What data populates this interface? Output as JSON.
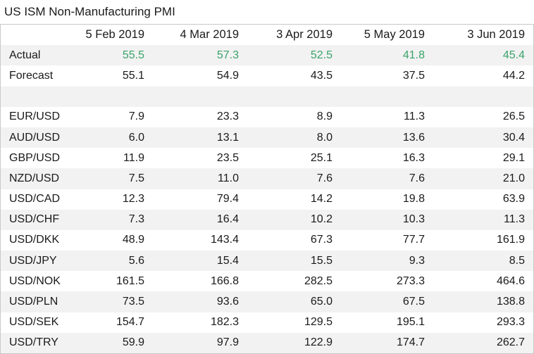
{
  "title": "US ISM Non-Manufacturing PMI",
  "columns": [
    "5 Feb 2019",
    "4 Mar 2019",
    "3 Apr 2019",
    "5 May 2019",
    "3 Jun 2019"
  ],
  "colors": {
    "actual_value": "#3aa36a",
    "row_shade": "#f2f2f2",
    "border": "#c8c8c8"
  },
  "rows": [
    {
      "label": "Actual",
      "values": [
        "55.5",
        "57.3",
        "52.5",
        "41.8",
        "45.4"
      ]
    },
    {
      "label": "Forecast",
      "values": [
        "55.1",
        "54.9",
        "43.5",
        "37.5",
        "44.2"
      ]
    },
    {
      "label": "",
      "values": [
        "",
        "",
        "",
        "",
        ""
      ]
    },
    {
      "label": "EUR/USD",
      "values": [
        "7.9",
        "23.3",
        "8.9",
        "11.3",
        "26.5"
      ]
    },
    {
      "label": "AUD/USD",
      "values": [
        "6.0",
        "13.1",
        "8.0",
        "13.6",
        "30.4"
      ]
    },
    {
      "label": "GBP/USD",
      "values": [
        "11.9",
        "23.5",
        "25.1",
        "16.3",
        "29.1"
      ]
    },
    {
      "label": "NZD/USD",
      "values": [
        "7.5",
        "11.0",
        "7.6",
        "7.6",
        "21.0"
      ]
    },
    {
      "label": "USD/CAD",
      "values": [
        "12.3",
        "79.4",
        "14.2",
        "19.8",
        "63.9"
      ]
    },
    {
      "label": "USD/CHF",
      "values": [
        "7.3",
        "16.4",
        "10.2",
        "10.3",
        "11.3"
      ]
    },
    {
      "label": "USD/DKK",
      "values": [
        "48.9",
        "143.4",
        "67.3",
        "77.7",
        "161.9"
      ]
    },
    {
      "label": "USD/JPY",
      "values": [
        "5.6",
        "15.4",
        "15.5",
        "9.3",
        "8.5"
      ]
    },
    {
      "label": "USD/NOK",
      "values": [
        "161.5",
        "166.8",
        "282.5",
        "273.3",
        "464.6"
      ]
    },
    {
      "label": "USD/PLN",
      "values": [
        "73.5",
        "93.6",
        "65.0",
        "67.5",
        "138.8"
      ]
    },
    {
      "label": "USD/SEK",
      "values": [
        "154.7",
        "182.3",
        "129.5",
        "195.1",
        "293.3"
      ]
    },
    {
      "label": "USD/TRY",
      "values": [
        "59.9",
        "97.9",
        "122.9",
        "174.7",
        "262.7"
      ]
    }
  ]
}
